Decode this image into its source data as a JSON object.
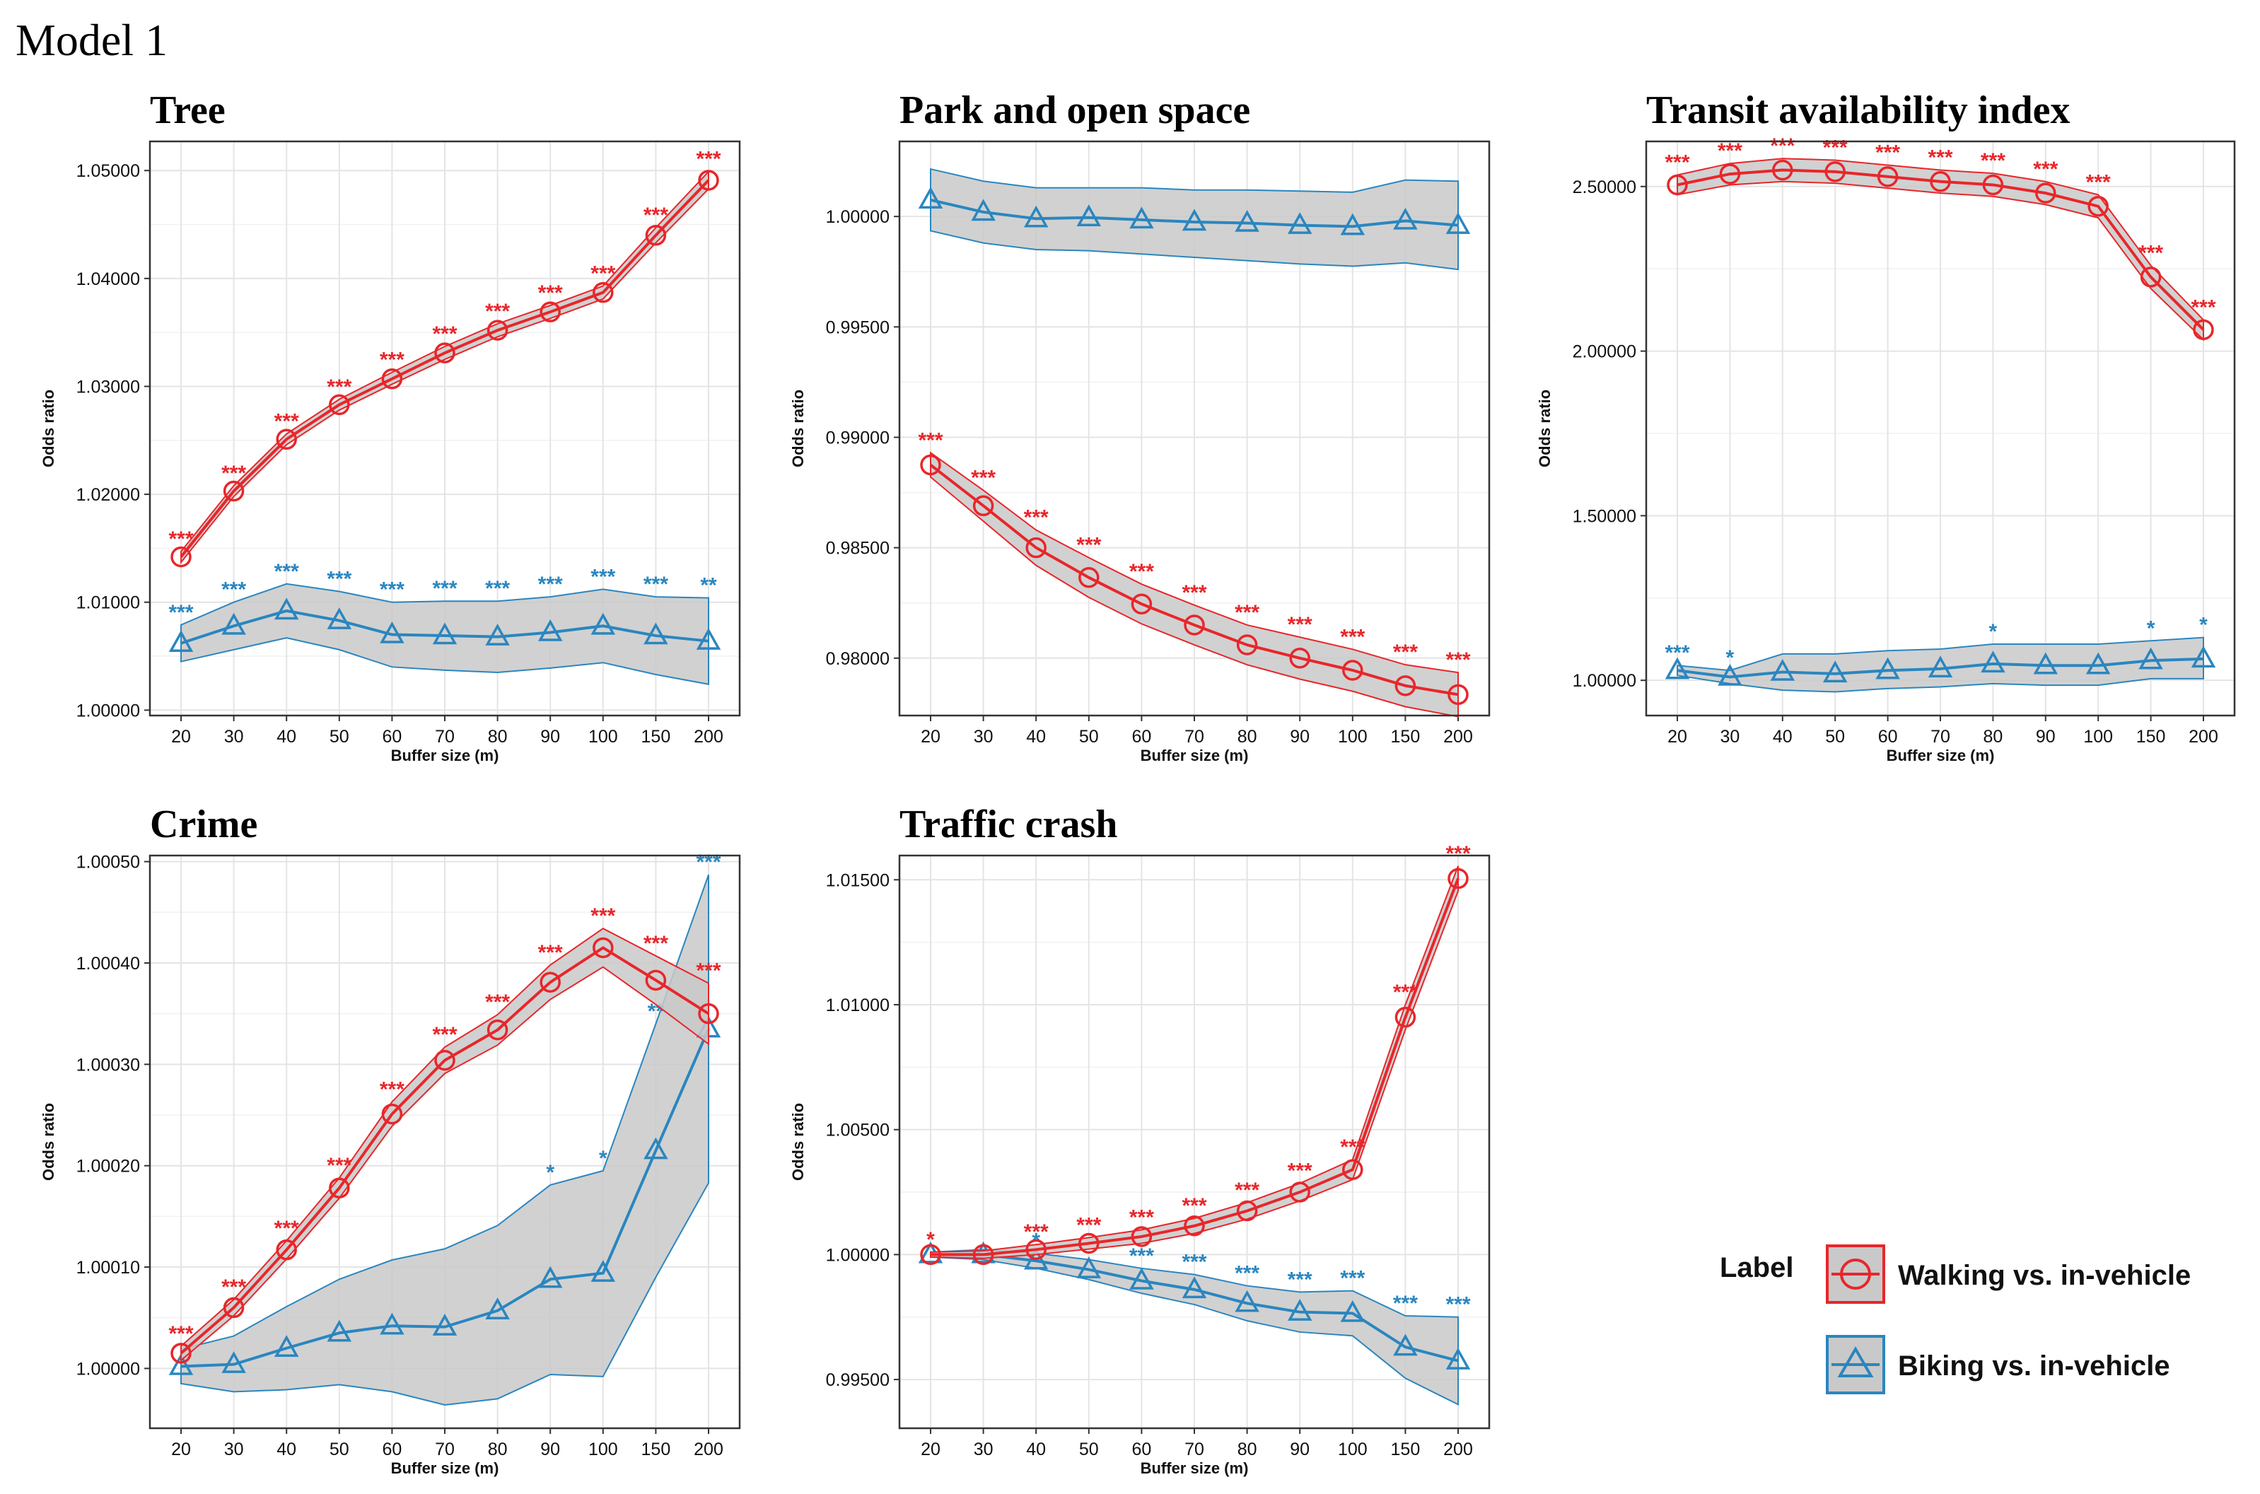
{
  "figure_title": "Model 1",
  "colors": {
    "walking": "#e8262a",
    "biking": "#2a86bf",
    "band": "#c9c9c9",
    "grid": "#e4e4e4"
  },
  "legend": {
    "title": "Label",
    "entries": [
      {
        "label": "Walking vs. in-vehicle",
        "color": "#e8262a",
        "marker": "circle"
      },
      {
        "label": "Biking vs. in-vehicle",
        "color": "#2a86bf",
        "marker": "triangle"
      }
    ]
  },
  "chart_data": [
    {
      "type": "line",
      "title": "Tree",
      "xlabel": "Buffer size (m)",
      "ylabel": "Odds ratio",
      "categories": [
        "20",
        "30",
        "40",
        "50",
        "60",
        "70",
        "80",
        "90",
        "100",
        "150",
        "200"
      ],
      "ylim": [
        0.9995,
        1.0527
      ],
      "yticks": [
        "1.00000",
        "1.01000",
        "1.02000",
        "1.03000",
        "1.04000",
        "1.05000"
      ],
      "series": [
        {
          "name": "Walking vs. in-vehicle",
          "values": [
            1.0142,
            1.0203,
            1.0251,
            1.0283,
            1.0307,
            1.0331,
            1.0352,
            1.0369,
            1.0387,
            1.044,
            1.0491
          ],
          "lower": [
            1.0137,
            1.0198,
            1.0246,
            1.0278,
            1.0302,
            1.0325,
            1.0346,
            1.0363,
            1.0381,
            1.0433,
            1.0483
          ],
          "upper": [
            1.0147,
            1.0208,
            1.0256,
            1.0288,
            1.0313,
            1.0337,
            1.0358,
            1.0375,
            1.0393,
            1.0447,
            1.0499
          ],
          "sig": [
            "***",
            "***",
            "***",
            "***",
            "***",
            "***",
            "***",
            "***",
            "***",
            "***",
            "***"
          ]
        },
        {
          "name": "Biking vs. in-vehicle",
          "values": [
            1.0062,
            1.0078,
            1.0092,
            1.0083,
            1.007,
            1.0069,
            1.0068,
            1.0072,
            1.0078,
            1.0069,
            1.0064
          ],
          "lower": [
            1.0045,
            1.0056,
            1.0067,
            1.0056,
            1.004,
            1.0037,
            1.0035,
            1.0039,
            1.0044,
            1.0033,
            1.0024
          ],
          "upper": [
            1.0079,
            1.01,
            1.0117,
            1.011,
            1.01,
            1.0101,
            1.0101,
            1.0105,
            1.0112,
            1.0105,
            1.0104
          ],
          "sig": [
            "***",
            "***",
            "***",
            "***",
            "***",
            "***",
            "***",
            "***",
            "***",
            "***",
            "**"
          ]
        }
      ]
    },
    {
      "type": "line",
      "title": "Park and open space",
      "xlabel": "Buffer size (m)",
      "ylabel": "Odds ratio",
      "categories": [
        "20",
        "30",
        "40",
        "50",
        "60",
        "70",
        "80",
        "90",
        "100",
        "150",
        "200"
      ],
      "ylim": [
        0.9774,
        1.0034
      ],
      "yticks": [
        "0.98000",
        "0.98500",
        "0.99000",
        "0.99500",
        "1.00000"
      ],
      "series": [
        {
          "name": "Walking vs. in-vehicle",
          "values": [
            0.98875,
            0.9869,
            0.985,
            0.98365,
            0.98245,
            0.9815,
            0.9806,
            0.98,
            0.97945,
            0.97875,
            0.97835
          ],
          "lower": [
            0.9882,
            0.9862,
            0.9842,
            0.98275,
            0.98155,
            0.9806,
            0.9797,
            0.97905,
            0.9785,
            0.9778,
            0.97735
          ],
          "upper": [
            0.9893,
            0.9876,
            0.9858,
            0.98455,
            0.98335,
            0.9824,
            0.9815,
            0.98095,
            0.9804,
            0.9797,
            0.97935
          ],
          "sig": [
            "***",
            "***",
            "***",
            "***",
            "***",
            "***",
            "***",
            "***",
            "***",
            "***",
            "***"
          ]
        },
        {
          "name": "Biking vs. in-vehicle",
          "values": [
            1.00075,
            1.0002,
            0.9999,
            0.99995,
            0.99985,
            0.99975,
            0.9997,
            0.9996,
            0.99955,
            0.9998,
            0.9996
          ],
          "lower": [
            0.99935,
            0.9988,
            0.9985,
            0.99845,
            0.9983,
            0.99815,
            0.998,
            0.99785,
            0.99775,
            0.9979,
            0.9976
          ],
          "upper": [
            1.00215,
            1.0016,
            1.0013,
            1.0013,
            1.0013,
            1.0012,
            1.0012,
            1.00115,
            1.0011,
            1.00165,
            1.0016
          ],
          "sig": [
            "",
            "",
            "",
            "",
            "",
            "",
            "",
            "",
            "",
            "",
            ""
          ]
        }
      ]
    },
    {
      "type": "line",
      "title": "Transit availability index",
      "xlabel": "Buffer size (m)",
      "ylabel": "Odds ratio",
      "categories": [
        "20",
        "30",
        "40",
        "50",
        "60",
        "70",
        "80",
        "90",
        "100",
        "150",
        "200"
      ],
      "ylim": [
        0.893,
        2.637
      ],
      "yticks": [
        "1.00000",
        "1.50000",
        "2.00000",
        "2.50000"
      ],
      "series": [
        {
          "name": "Walking vs. in-vehicle",
          "values": [
            2.505,
            2.538,
            2.55,
            2.545,
            2.53,
            2.515,
            2.505,
            2.48,
            2.44,
            2.225,
            2.065
          ],
          "lower": [
            2.475,
            2.505,
            2.515,
            2.51,
            2.495,
            2.48,
            2.47,
            2.445,
            2.405,
            2.19,
            2.035
          ],
          "upper": [
            2.535,
            2.57,
            2.585,
            2.58,
            2.565,
            2.55,
            2.54,
            2.515,
            2.475,
            2.26,
            2.095
          ],
          "sig": [
            "***",
            "***",
            "***",
            "***",
            "***",
            "***",
            "***",
            "***",
            "***",
            "***",
            "***"
          ]
        },
        {
          "name": "Biking vs. in-vehicle",
          "values": [
            1.03,
            1.01,
            1.025,
            1.02,
            1.03,
            1.035,
            1.05,
            1.045,
            1.045,
            1.06,
            1.065
          ],
          "lower": [
            1.015,
            0.99,
            0.97,
            0.965,
            0.975,
            0.98,
            0.99,
            0.985,
            0.985,
            1.005,
            1.005
          ],
          "upper": [
            1.045,
            1.03,
            1.08,
            1.08,
            1.09,
            1.095,
            1.11,
            1.11,
            1.11,
            1.12,
            1.13
          ],
          "sig": [
            "***",
            "*",
            "",
            "",
            "",
            "",
            "*",
            "",
            "",
            "*",
            "*"
          ]
        }
      ]
    },
    {
      "type": "line",
      "title": "Crime",
      "xlabel": "Buffer size (m)",
      "ylabel": "Odds ratio",
      "categories": [
        "20",
        "30",
        "40",
        "50",
        "60",
        "70",
        "80",
        "90",
        "100",
        "150",
        "200"
      ],
      "ylim": [
        0.999941,
        1.000506
      ],
      "yticks": [
        "1.00000",
        "1.00010",
        "1.00020",
        "1.00030",
        "1.00040",
        "1.00050"
      ],
      "series": [
        {
          "name": "Walking vs. in-vehicle",
          "values": [
            1.000015,
            1.00006,
            1.000117,
            1.000178,
            1.000251,
            1.000304,
            1.000334,
            1.000381,
            1.000415,
            1.000383,
            1.00035
          ],
          "lower": [
            1.000008,
            1.000052,
            1.000108,
            1.000168,
            1.000239,
            1.000291,
            1.000319,
            1.000364,
            1.000396,
            1.000359,
            1.00032
          ],
          "upper": [
            1.000022,
            1.000068,
            1.000126,
            1.000188,
            1.000263,
            1.000317,
            1.000349,
            1.000398,
            1.000434,
            1.000407,
            1.00038
          ],
          "sig": [
            "***",
            "***",
            "***",
            "***",
            "***",
            "***",
            "***",
            "***",
            "***",
            "***",
            "***"
          ]
        },
        {
          "name": "Biking vs. in-vehicle",
          "values": [
            1.000002,
            1.000004,
            1.00002,
            1.000035,
            1.000042,
            1.000041,
            1.000057,
            1.000088,
            1.000094,
            1.000215,
            1.000335
          ],
          "lower": [
            0.999985,
            0.999977,
            0.999979,
            0.999984,
            0.999977,
            0.999964,
            0.99997,
            0.999994,
            0.999992,
            1.00009,
            1.000183
          ],
          "upper": [
            1.000019,
            1.000032,
            1.000061,
            1.000088,
            1.000107,
            1.000118,
            1.000141,
            1.000181,
            1.000195,
            1.00034,
            1.000487
          ],
          "sig": [
            "",
            "",
            "",
            "",
            "",
            "",
            "",
            "*",
            "*",
            "**",
            "***"
          ]
        }
      ]
    },
    {
      "type": "line",
      "title": "Traffic crash",
      "xlabel": "Buffer size (m)",
      "ylabel": "Odds ratio",
      "categories": [
        "20",
        "30",
        "40",
        "50",
        "60",
        "70",
        "80",
        "90",
        "100",
        "150",
        "200"
      ],
      "ylim": [
        0.99305,
        1.01597
      ],
      "yticks": [
        "0.99500",
        "1.00000",
        "1.00500",
        "1.01000",
        "1.01500"
      ],
      "series": [
        {
          "name": "Walking vs. in-vehicle",
          "values": [
            1.0,
            1.0,
            1.0002,
            1.00045,
            1.00072,
            1.00115,
            1.00175,
            1.0025,
            1.0034,
            1.0095,
            1.01505
          ],
          "lower": [
            0.9999,
            0.99985,
            1.0,
            1.00022,
            1.00045,
            1.00085,
            1.00142,
            1.00215,
            1.003,
            1.009,
            1.01455
          ],
          "upper": [
            1.0001,
            1.00015,
            1.0004,
            1.00068,
            1.00099,
            1.00145,
            1.00208,
            1.00285,
            1.0038,
            1.01,
            1.01555
          ],
          "sig": [
            "*",
            "",
            "***",
            "***",
            "***",
            "***",
            "***",
            "***",
            "***",
            "***",
            "***"
          ]
        },
        {
          "name": "Biking vs. in-vehicle",
          "values": [
            1.0,
            1.0,
            0.99975,
            0.9994,
            0.99895,
            0.9986,
            0.99805,
            0.9977,
            0.99765,
            0.9963,
            0.99575
          ],
          "lower": [
            0.9999,
            0.9998,
            0.99945,
            0.999,
            0.99845,
            0.998,
            0.99735,
            0.9969,
            0.99675,
            0.99505,
            0.994
          ],
          "upper": [
            1.0001,
            1.0002,
            1.00005,
            0.9998,
            0.99945,
            0.9992,
            0.99875,
            0.9985,
            0.99855,
            0.99755,
            0.9975
          ],
          "sig": [
            "",
            "",
            "*",
            "",
            "***",
            "***",
            "***",
            "***",
            "***",
            "***",
            "***"
          ]
        }
      ]
    }
  ]
}
